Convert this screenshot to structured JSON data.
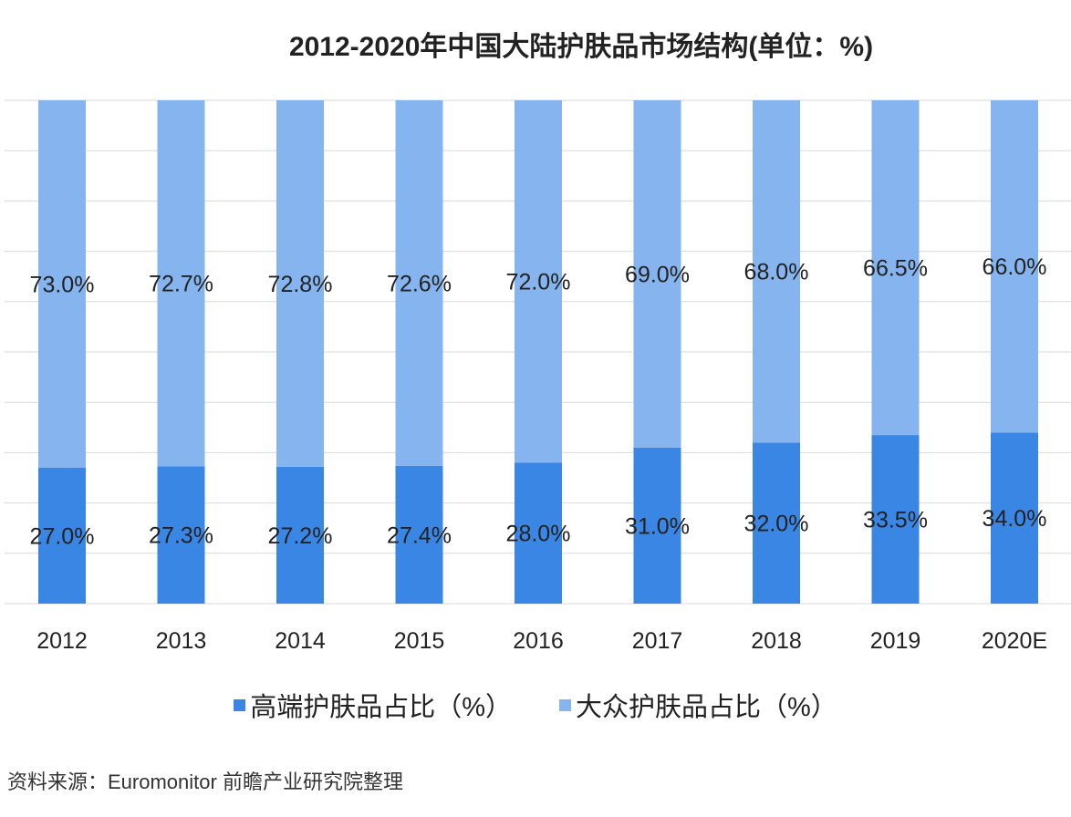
{
  "chart_data": {
    "type": "bar",
    "stacked": true,
    "title": "2012-2020年中国大陆护肤品市场结构(单位：%)",
    "categories": [
      "2012",
      "2013",
      "2014",
      "2015",
      "2016",
      "2017",
      "2018",
      "2019",
      "2020E"
    ],
    "series": [
      {
        "name": "高端护肤品占比（%）",
        "color": "#3a86e4",
        "values": [
          27.0,
          27.3,
          27.2,
          27.4,
          28.0,
          31.0,
          32.0,
          33.5,
          34.0
        ]
      },
      {
        "name": "大众护肤品占比（%）",
        "color": "#86b4ee",
        "values": [
          73.0,
          72.7,
          72.8,
          72.6,
          72.0,
          69.0,
          68.0,
          66.5,
          66.0
        ]
      }
    ],
    "ylim": [
      0,
      100
    ],
    "grid": true,
    "legend": "bottom",
    "source": "资料来源：Euromonitor 前瞻产业研究院整理"
  }
}
